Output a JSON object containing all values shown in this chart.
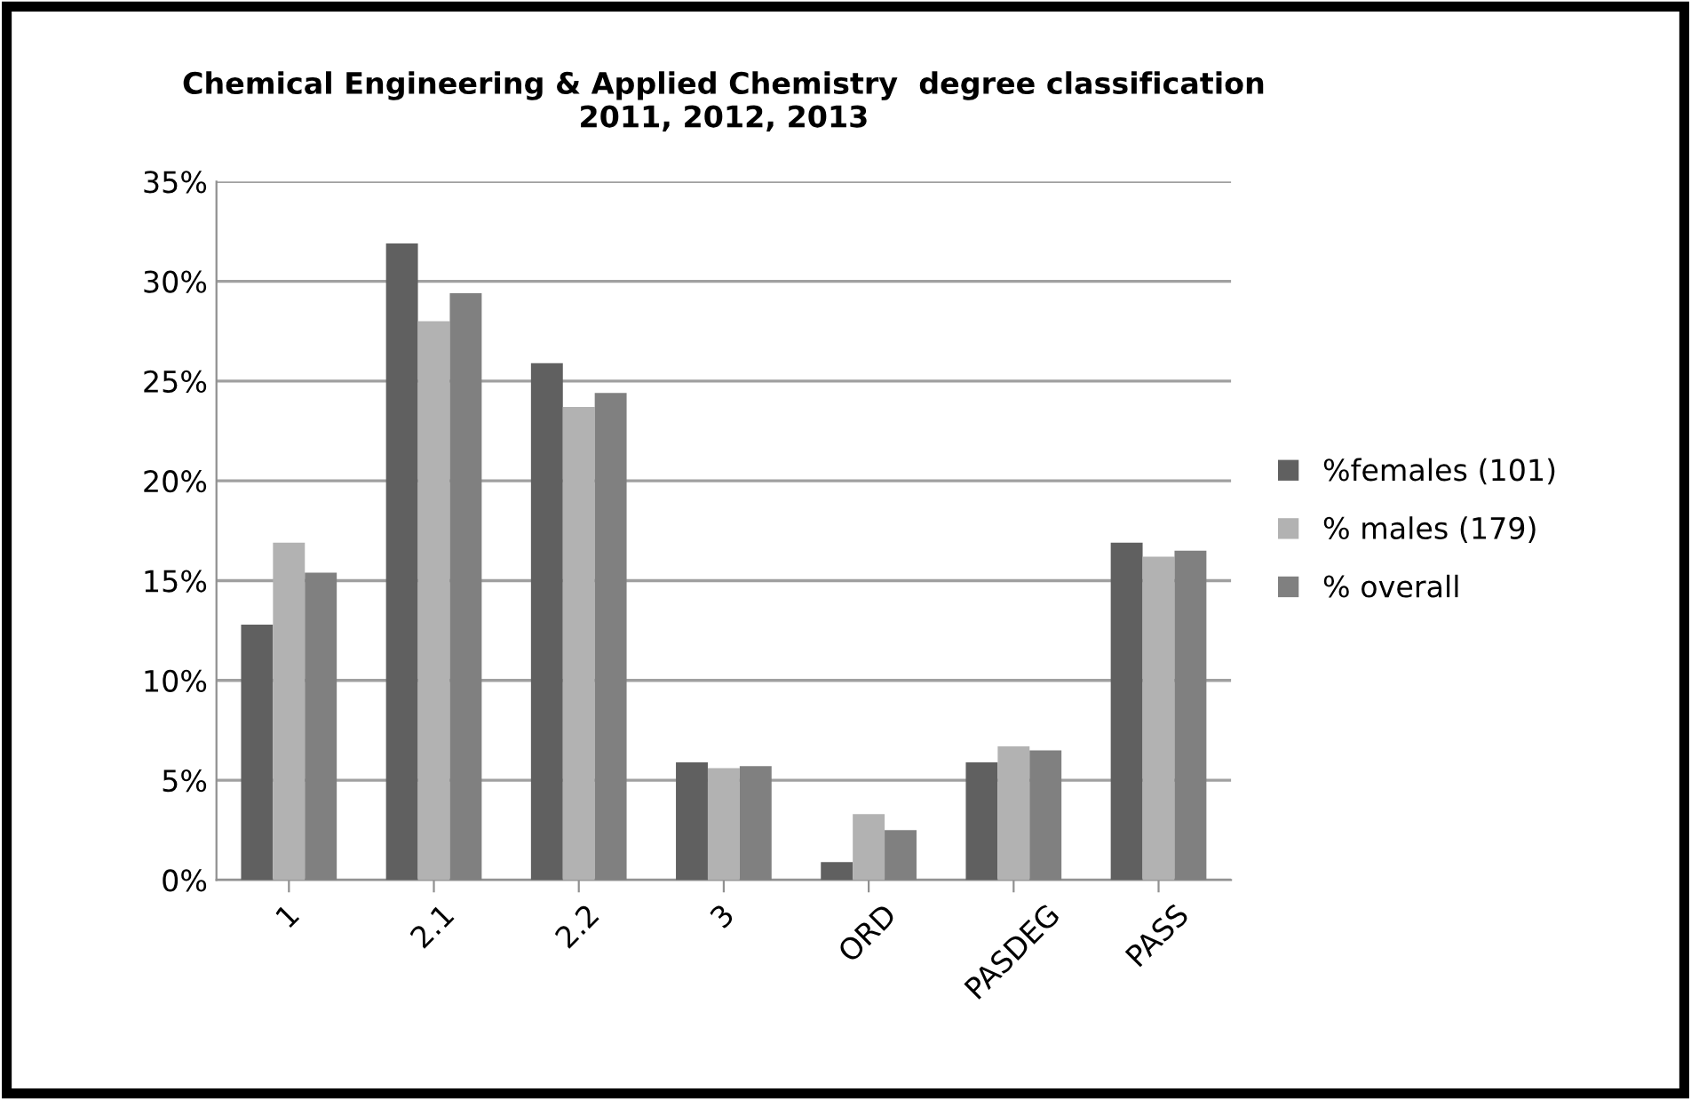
{
  "chart_data": {
    "type": "bar",
    "title": "Chemical Engineering & Applied Chemistry  degree classification\n2011, 2012, 2013",
    "categories": [
      "1",
      "2.1",
      "2.2",
      "3",
      "ORD",
      "PASDEG",
      "PASS"
    ],
    "series": [
      {
        "name": "%females (101)",
        "color": "#606060",
        "values": [
          12.8,
          31.9,
          25.9,
          5.9,
          0.9,
          5.9,
          16.9
        ]
      },
      {
        "name": "% males (179)",
        "color": "#b2b2b2",
        "values": [
          16.9,
          28.0,
          23.7,
          5.6,
          3.3,
          6.7,
          16.2
        ]
      },
      {
        "name": "% overall",
        "color": "#808080",
        "values": [
          15.4,
          29.4,
          24.4,
          5.7,
          2.5,
          6.5,
          16.5
        ]
      }
    ],
    "ylim": [
      0,
      35
    ],
    "yticks": [
      {
        "value": 0,
        "label": "0%"
      },
      {
        "value": 5,
        "label": "5%"
      },
      {
        "value": 10,
        "label": "10%"
      },
      {
        "value": 15,
        "label": "15%"
      },
      {
        "value": 20,
        "label": "20%"
      },
      {
        "value": 25,
        "label": "25%"
      },
      {
        "value": 30,
        "label": "30%"
      },
      {
        "value": 35,
        "label": "35%"
      }
    ],
    "grid": "y",
    "legend": "right"
  }
}
